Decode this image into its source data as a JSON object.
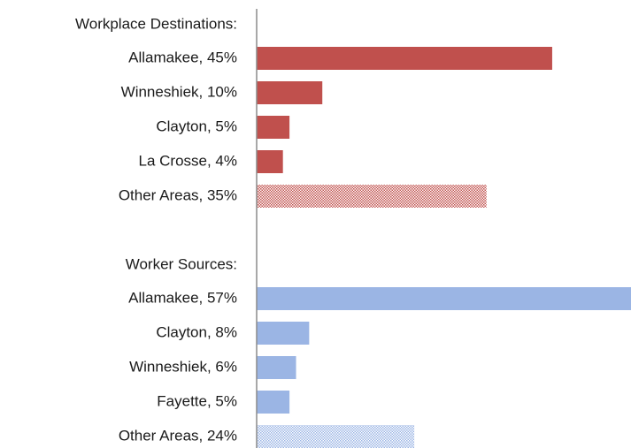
{
  "chart_data": {
    "type": "bar",
    "orientation": "horizontal",
    "xlim": [
      0,
      57
    ],
    "groups": [
      {
        "title": "Workplace Destinations:",
        "color": "#c0504d",
        "categories": [
          "Allamakee, 45%",
          "Winneshiek, 10%",
          "Clayton, 5%",
          "La Crosse, 4%",
          "Other Areas, 35%"
        ],
        "values": [
          45,
          10,
          5,
          4,
          35
        ],
        "hatched": [
          false,
          false,
          false,
          false,
          true
        ]
      },
      {
        "title": "Worker Sources:",
        "color": "#9bb5e4",
        "categories": [
          "Allamakee, 57%",
          "Clayton, 8%",
          "Winneshiek, 6%",
          "Fayette, 5%",
          "Other Areas, 24%"
        ],
        "values": [
          57,
          8,
          6,
          5,
          24
        ],
        "hatched": [
          false,
          false,
          false,
          false,
          true
        ]
      }
    ]
  }
}
